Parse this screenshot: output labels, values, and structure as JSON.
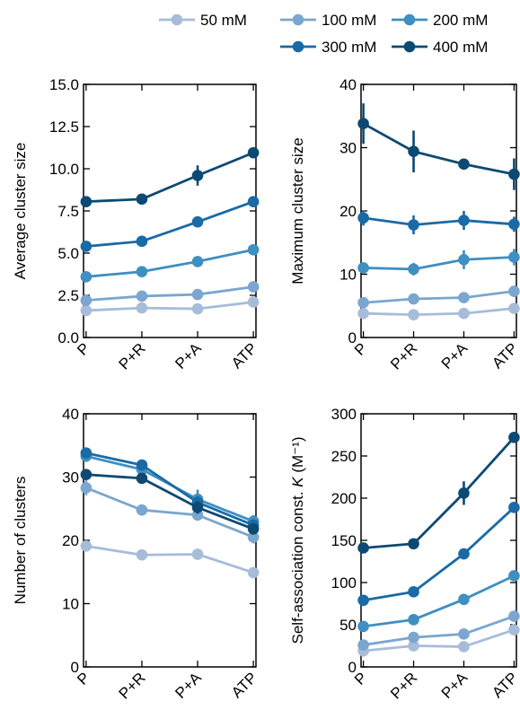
{
  "chart_data": [
    {
      "type": "line",
      "categories": [
        "P",
        "P+R",
        "P+A",
        "ATP"
      ],
      "ylabel": "Average cluster size",
      "ylim": [
        0,
        15
      ],
      "yticks": [
        "0.0",
        "2.5",
        "5.0",
        "7.5",
        "10.0",
        "12.5",
        "15.0"
      ],
      "series": [
        {
          "name": "50 mM",
          "values": [
            1.6,
            1.75,
            1.7,
            2.1
          ],
          "errors": [
            0.1,
            0.1,
            0.1,
            0.15
          ]
        },
        {
          "name": "100 mM",
          "values": [
            2.2,
            2.45,
            2.55,
            3.0
          ],
          "errors": [
            0.1,
            0.1,
            0.15,
            0.2
          ]
        },
        {
          "name": "200 mM",
          "values": [
            3.6,
            3.9,
            4.5,
            5.2
          ],
          "errors": [
            0.15,
            0.15,
            0.2,
            0.2
          ]
        },
        {
          "name": "300 mM",
          "values": [
            5.4,
            5.7,
            6.85,
            8.05
          ],
          "errors": [
            0.15,
            0.2,
            0.2,
            0.25
          ]
        },
        {
          "name": "400 mM",
          "values": [
            8.05,
            8.2,
            9.6,
            10.95
          ],
          "errors": [
            0.2,
            0.2,
            0.6,
            0.3
          ]
        }
      ]
    },
    {
      "type": "line",
      "categories": [
        "P",
        "P+R",
        "P+A",
        "ATP"
      ],
      "ylabel": "Maximum cluster size",
      "ylim": [
        0,
        40
      ],
      "yticks": [
        "0",
        "10",
        "20",
        "30",
        "40"
      ],
      "series": [
        {
          "name": "50 mM",
          "values": [
            3.8,
            3.6,
            3.8,
            4.6
          ],
          "errors": [
            0.8,
            0.6,
            0.6,
            0.8
          ]
        },
        {
          "name": "100 mM",
          "values": [
            5.5,
            6.1,
            6.3,
            7.3
          ],
          "errors": [
            0.8,
            0.8,
            0.8,
            0.9
          ]
        },
        {
          "name": "200 mM",
          "values": [
            11.0,
            10.8,
            12.3,
            12.7
          ],
          "errors": [
            0.8,
            1.0,
            1.5,
            1.3
          ]
        },
        {
          "name": "300 mM",
          "values": [
            18.9,
            17.8,
            18.5,
            17.9
          ],
          "errors": [
            1.2,
            1.5,
            1.5,
            1.2
          ]
        },
        {
          "name": "400 mM",
          "values": [
            33.8,
            29.4,
            27.4,
            25.8
          ],
          "errors": [
            3.2,
            3.3,
            0.8,
            2.5
          ]
        }
      ]
    },
    {
      "type": "line",
      "categories": [
        "P",
        "P+R",
        "P+A",
        "ATP"
      ],
      "ylabel": "Number of clusters",
      "ylim": [
        0,
        40
      ],
      "yticks": [
        "0",
        "10",
        "20",
        "30",
        "40"
      ],
      "series": [
        {
          "name": "50 mM",
          "values": [
            19.1,
            17.7,
            17.8,
            14.9
          ],
          "errors": [
            0.6,
            0.6,
            0.5,
            0.6
          ]
        },
        {
          "name": "100 mM",
          "values": [
            28.3,
            24.8,
            24.0,
            20.5
          ],
          "errors": [
            1.2,
            0.8,
            0.8,
            1.0
          ]
        },
        {
          "name": "200 mM",
          "values": [
            33.3,
            31.2,
            26.5,
            23.0
          ],
          "errors": [
            0.8,
            0.8,
            1.5,
            1.0
          ]
        },
        {
          "name": "300 mM",
          "values": [
            33.8,
            31.9,
            26.0,
            22.4
          ],
          "errors": [
            0.8,
            0.8,
            1.0,
            0.9
          ]
        },
        {
          "name": "400 mM",
          "values": [
            30.4,
            29.8,
            25.2,
            21.8
          ],
          "errors": [
            0.8,
            0.8,
            1.0,
            0.9
          ]
        }
      ]
    },
    {
      "type": "line",
      "categories": [
        "P",
        "P+R",
        "P+A",
        "ATP"
      ],
      "ylabel": "Self-association const. K (M⁻¹)",
      "ylim": [
        0,
        300
      ],
      "yticks": [
        "0",
        "50",
        "100",
        "150",
        "200",
        "250",
        "300"
      ],
      "series": [
        {
          "name": "50 mM",
          "values": [
            19,
            25,
            24,
            44
          ],
          "errors": [
            3,
            3,
            4,
            5
          ]
        },
        {
          "name": "100 mM",
          "values": [
            26,
            35,
            39,
            60
          ],
          "errors": [
            3,
            4,
            4,
            5
          ]
        },
        {
          "name": "200 mM",
          "values": [
            48,
            56,
            80,
            108
          ],
          "errors": [
            4,
            4,
            4,
            5
          ]
        },
        {
          "name": "300 mM",
          "values": [
            79,
            89,
            134,
            189
          ],
          "errors": [
            4,
            4,
            5,
            6
          ]
        },
        {
          "name": "400 mM",
          "values": [
            141,
            146,
            206,
            272
          ],
          "errors": [
            4,
            4,
            14,
            5
          ]
        }
      ]
    }
  ],
  "legend": {
    "placement": "top-right",
    "items": [
      "50 mM",
      "100 mM",
      "200 mM",
      "300 mM",
      "400 mM"
    ]
  },
  "colors": {
    "50 mM": "#a7bcd9",
    "100 mM": "#7aa6cf",
    "200 mM": "#3f8fc2",
    "300 mM": "#1a6aa6",
    "400 mM": "#0d4a73"
  }
}
